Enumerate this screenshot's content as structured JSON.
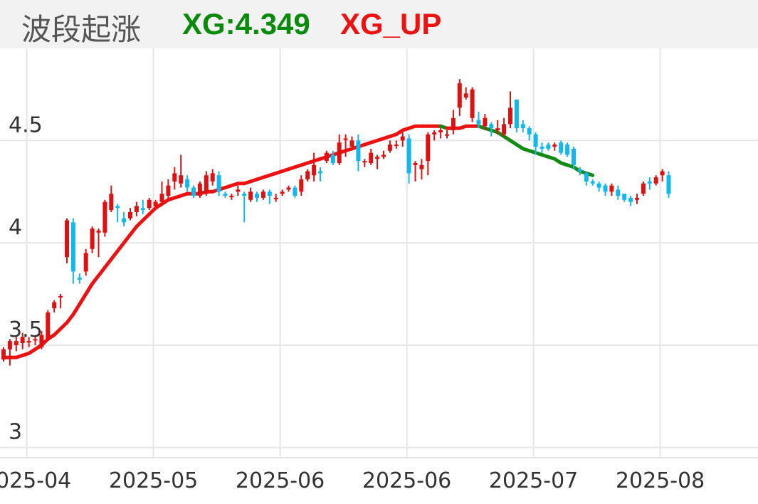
{
  "header": {
    "title": "波段起涨",
    "xg_label": "XG:4.349",
    "xgup_label": "XG_UP"
  },
  "colors": {
    "up_candle": "#dd1111",
    "down_candle": "#11b8ee",
    "xg_up": "#ee1111",
    "xg_down": "#138a13",
    "grid": "#e6e6e6"
  },
  "chart_data": {
    "type": "candlestick",
    "title": "波段起涨",
    "ylim": [
      2.95,
      4.95
    ],
    "y_ticks": [
      {
        "value": 3,
        "label": "3"
      },
      {
        "value": 3.5,
        "label": "3.5"
      },
      {
        "value": 4,
        "label": "4"
      },
      {
        "value": 4.5,
        "label": "4.5"
      }
    ],
    "x_tick_labels": [
      "2025-04",
      "2025-05",
      "2025-06",
      "2025-06",
      "2025-07",
      "2025-08"
    ],
    "x_tick_bar_index": [
      4,
      24,
      44,
      64,
      84,
      104
    ],
    "candles": [
      [
        3.43,
        3.48,
        3.42,
        3.49
      ],
      [
        3.48,
        3.52,
        3.4,
        3.53
      ],
      [
        3.5,
        3.52,
        3.47,
        3.54
      ],
      [
        3.51,
        3.54,
        3.48,
        3.56
      ],
      [
        3.52,
        3.52,
        3.49,
        3.54
      ],
      [
        3.53,
        3.53,
        3.5,
        3.54
      ],
      [
        3.49,
        3.55,
        3.48,
        3.57
      ],
      [
        3.53,
        3.66,
        3.52,
        3.67
      ],
      [
        3.68,
        3.71,
        3.66,
        3.72
      ],
      [
        3.74,
        3.74,
        3.68,
        3.75
      ],
      [
        3.93,
        4.11,
        3.9,
        4.12
      ],
      [
        4.1,
        3.86,
        3.8,
        4.12
      ],
      [
        3.83,
        3.82,
        3.8,
        3.85
      ],
      [
        3.86,
        3.95,
        3.84,
        3.97
      ],
      [
        3.97,
        4.07,
        3.95,
        4.08
      ],
      [
        4.05,
        4.06,
        3.93,
        4.07
      ],
      [
        4.05,
        4.2,
        4.03,
        4.21
      ],
      [
        4.16,
        4.24,
        4.15,
        4.28
      ],
      [
        4.18,
        4.17,
        4.1,
        4.19
      ],
      [
        4.12,
        4.1,
        4.08,
        4.15
      ],
      [
        4.12,
        4.15,
        4.11,
        4.17
      ],
      [
        4.15,
        4.18,
        4.13,
        4.2
      ],
      [
        4.17,
        4.16,
        4.14,
        4.21
      ],
      [
        4.17,
        4.21,
        4.16,
        4.22
      ],
      [
        4.18,
        4.2,
        4.17,
        4.21
      ],
      [
        4.2,
        4.24,
        4.18,
        4.3
      ],
      [
        4.23,
        4.28,
        4.21,
        4.31
      ],
      [
        4.3,
        4.34,
        4.26,
        4.37
      ],
      [
        4.29,
        4.33,
        4.27,
        4.43
      ],
      [
        4.31,
        4.27,
        4.25,
        4.33
      ],
      [
        4.27,
        4.23,
        4.22,
        4.28
      ],
      [
        4.23,
        4.29,
        4.22,
        4.3
      ],
      [
        4.24,
        4.33,
        4.23,
        4.35
      ],
      [
        4.3,
        4.34,
        4.28,
        4.36
      ],
      [
        4.33,
        4.25,
        4.23,
        4.35
      ],
      [
        4.24,
        4.23,
        4.22,
        4.25
      ],
      [
        4.23,
        4.23,
        4.21,
        4.24
      ],
      [
        4.25,
        4.26,
        4.23,
        4.28
      ],
      [
        4.24,
        4.23,
        4.1,
        4.25
      ],
      [
        4.21,
        4.25,
        4.2,
        4.27
      ],
      [
        4.24,
        4.22,
        4.2,
        4.25
      ],
      [
        4.22,
        4.25,
        4.21,
        4.26
      ],
      [
        4.25,
        4.23,
        4.19,
        4.26
      ],
      [
        4.22,
        4.22,
        4.2,
        4.24
      ],
      [
        4.24,
        4.25,
        4.23,
        4.26
      ],
      [
        4.26,
        4.27,
        4.25,
        4.28
      ],
      [
        4.27,
        4.23,
        4.22,
        4.28
      ],
      [
        4.25,
        4.31,
        4.23,
        4.33
      ],
      [
        4.31,
        4.35,
        4.3,
        4.36
      ],
      [
        4.33,
        4.38,
        4.3,
        4.44
      ],
      [
        4.35,
        4.34,
        4.3,
        4.37
      ],
      [
        4.4,
        4.44,
        4.39,
        4.45
      ],
      [
        4.43,
        4.39,
        4.38,
        4.45
      ],
      [
        4.39,
        4.49,
        4.38,
        4.53
      ],
      [
        4.51,
        4.51,
        4.42,
        4.53
      ],
      [
        4.47,
        4.5,
        4.47,
        4.52
      ],
      [
        4.5,
        4.4,
        4.35,
        4.53
      ],
      [
        4.4,
        4.4,
        4.37,
        4.41
      ],
      [
        4.39,
        4.44,
        4.38,
        4.46
      ],
      [
        4.41,
        4.42,
        4.36,
        4.43
      ],
      [
        4.42,
        4.43,
        4.41,
        4.45
      ],
      [
        4.45,
        4.48,
        4.44,
        4.5
      ],
      [
        4.48,
        4.48,
        4.46,
        4.5
      ],
      [
        4.5,
        4.52,
        4.47,
        4.54
      ],
      [
        4.51,
        4.34,
        4.29,
        4.53
      ],
      [
        4.38,
        4.39,
        4.3,
        4.4
      ],
      [
        4.36,
        4.38,
        4.31,
        4.41
      ],
      [
        4.4,
        4.53,
        4.33,
        4.54
      ],
      [
        4.53,
        4.54,
        4.5,
        4.55
      ],
      [
        4.54,
        4.55,
        4.51,
        4.56
      ],
      [
        4.53,
        4.53,
        4.51,
        4.55
      ],
      [
        4.55,
        4.61,
        4.53,
        4.65
      ],
      [
        4.66,
        4.78,
        4.62,
        4.8
      ],
      [
        4.71,
        4.73,
        4.7,
        4.76
      ],
      [
        4.61,
        4.75,
        4.59,
        4.76
      ],
      [
        4.6,
        4.58,
        4.56,
        4.64
      ],
      [
        4.57,
        4.61,
        4.55,
        4.63
      ],
      [
        4.58,
        4.56,
        4.52,
        4.59
      ],
      [
        4.55,
        4.56,
        4.53,
        4.6
      ],
      [
        4.53,
        4.58,
        4.52,
        4.61
      ],
      [
        4.58,
        4.66,
        4.56,
        4.74
      ],
      [
        4.7,
        4.56,
        4.54,
        4.7
      ],
      [
        4.58,
        4.56,
        4.54,
        4.6
      ],
      [
        4.56,
        4.53,
        4.5,
        4.57
      ],
      [
        4.53,
        4.47,
        4.43,
        4.54
      ],
      [
        4.47,
        4.46,
        4.44,
        4.49
      ],
      [
        4.48,
        4.46,
        4.45,
        4.49
      ],
      [
        4.47,
        4.48,
        4.45,
        4.49
      ],
      [
        4.49,
        4.44,
        4.43,
        4.5
      ],
      [
        4.48,
        4.43,
        4.42,
        4.49
      ],
      [
        4.46,
        4.38,
        4.36,
        4.47
      ],
      [
        4.36,
        4.35,
        4.33,
        4.37
      ],
      [
        4.34,
        4.3,
        4.28,
        4.35
      ],
      [
        4.3,
        4.29,
        4.28,
        4.31
      ],
      [
        4.29,
        4.27,
        4.25,
        4.3
      ],
      [
        4.28,
        4.25,
        4.23,
        4.29
      ],
      [
        4.25,
        4.28,
        4.23,
        4.29
      ],
      [
        4.26,
        4.23,
        4.21,
        4.28
      ],
      [
        4.24,
        4.21,
        4.2,
        4.24
      ],
      [
        4.22,
        4.2,
        4.18,
        4.23
      ],
      [
        4.21,
        4.22,
        4.19,
        4.24
      ],
      [
        4.24,
        4.29,
        4.23,
        4.3
      ],
      [
        4.3,
        4.29,
        4.26,
        4.32
      ],
      [
        4.29,
        4.32,
        4.28,
        4.33
      ],
      [
        4.33,
        4.35,
        4.3,
        4.36
      ],
      [
        4.33,
        4.24,
        4.22,
        4.35
      ]
    ],
    "xg_line": [
      3.44,
      3.44,
      3.44,
      3.45,
      3.46,
      3.48,
      3.5,
      3.53,
      3.55,
      3.58,
      3.61,
      3.65,
      3.7,
      3.75,
      3.8,
      3.84,
      3.88,
      3.92,
      3.96,
      4.0,
      4.04,
      4.08,
      4.11,
      4.14,
      4.17,
      4.19,
      4.21,
      4.22,
      4.23,
      4.24,
      4.24,
      4.24,
      4.25,
      4.25,
      4.26,
      4.27,
      4.28,
      4.29,
      4.29,
      4.3,
      4.31,
      4.32,
      4.33,
      4.34,
      4.35,
      4.36,
      4.37,
      4.38,
      4.39,
      4.4,
      4.41,
      4.42,
      4.43,
      4.44,
      4.45,
      4.46,
      4.47,
      4.48,
      4.49,
      4.5,
      4.51,
      4.52,
      4.53,
      4.55,
      4.56,
      4.57,
      4.57,
      4.57,
      4.57,
      4.57,
      4.56,
      4.56,
      4.56,
      4.57,
      4.57,
      4.57,
      4.56,
      4.55,
      4.54,
      4.52,
      4.5,
      4.48,
      4.46,
      4.45,
      4.44,
      4.43,
      4.42,
      4.41,
      4.39,
      4.38,
      4.37,
      4.35,
      4.34,
      4.33
    ],
    "xg_line_start_index": 0,
    "xg_last_value": 4.349
  }
}
